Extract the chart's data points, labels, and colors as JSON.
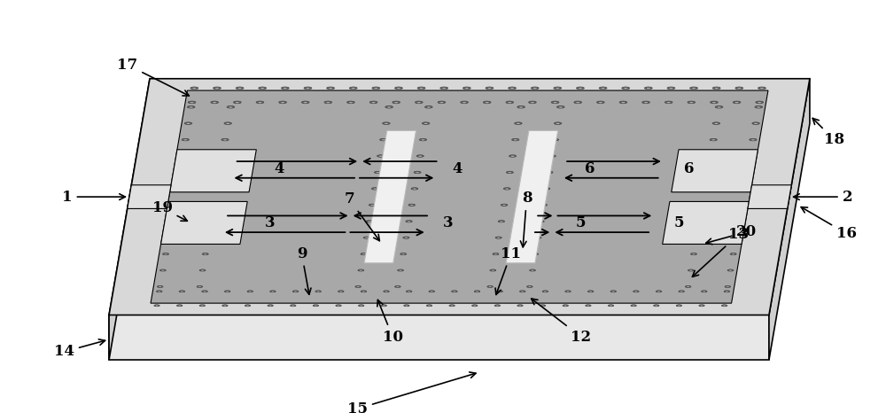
{
  "fig_width": 10.0,
  "fig_height": 4.66,
  "dpi": 100,
  "bg_color": "#ffffff",
  "slab_top_color": "#d8d8d8",
  "slab_front_color": "#e8e8e8",
  "slab_bottom_color": "#c8c8c8",
  "siw_surface_color": "#a8a8a8",
  "via_dark_color": "#787878",
  "via_light_color": "#c0c0c0",
  "slot_color": "#f2f2f2",
  "feed_color": "#e4e4e4",
  "label_fontsize": 12,
  "label_fontweight": "bold"
}
